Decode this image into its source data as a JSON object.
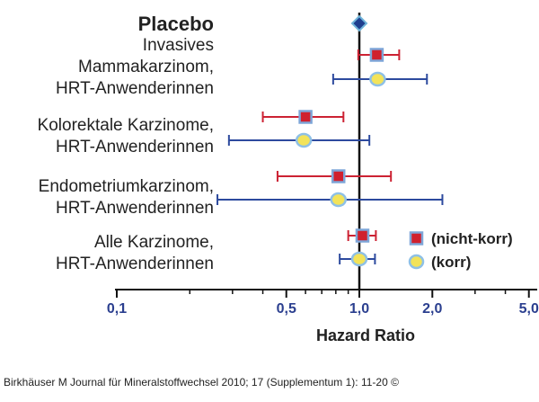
{
  "chart_data": {
    "type": "forest",
    "xlabel": "Hazard Ratio",
    "xscale": "log",
    "xlim": [
      0.1,
      5.0
    ],
    "reference_line": 1.0,
    "x_ticks": [
      {
        "value": 0.1,
        "label": "0,1"
      },
      {
        "value": 0.5,
        "label": "0,5"
      },
      {
        "value": 1.0,
        "label": "1,0"
      },
      {
        "value": 2.0,
        "label": "2,0"
      },
      {
        "value": 5.0,
        "label": "5,0"
      }
    ],
    "placebo": {
      "label": "Placebo",
      "value": 1.0
    },
    "groups": [
      {
        "label_lines": [
          "Invasives",
          "Mammakarzinom,",
          "HRT-Anwenderinnen"
        ],
        "nicht_korr": {
          "hr": 1.18,
          "lo": 0.99,
          "hi": 1.46
        },
        "korr": {
          "hr": 1.19,
          "lo": 0.78,
          "hi": 1.9
        }
      },
      {
        "label_lines": [
          "Kolorektale Karzinome,",
          "HRT-Anwenderinnen"
        ],
        "nicht_korr": {
          "hr": 0.6,
          "lo": 0.4,
          "hi": 0.86
        },
        "korr": {
          "hr": 0.59,
          "lo": 0.29,
          "hi": 1.1
        }
      },
      {
        "label_lines": [
          "Endometriumkarzinom,",
          "HRT-Anwenderinnen"
        ],
        "nicht_korr": {
          "hr": 0.82,
          "lo": 0.46,
          "hi": 1.35
        },
        "korr": {
          "hr": 0.82,
          "lo": 0.26,
          "hi": 2.2
        }
      },
      {
        "label_lines": [
          "Alle Karzinome,",
          "HRT-Anwenderinnen"
        ],
        "nicht_korr": {
          "hr": 1.03,
          "lo": 0.9,
          "hi": 1.17
        },
        "korr": {
          "hr": 1.0,
          "lo": 0.83,
          "hi": 1.16
        }
      }
    ],
    "legend": [
      {
        "key": "nicht_korr",
        "label": "(nicht-korr)",
        "marker": "square"
      },
      {
        "key": "korr",
        "label": "(korr)",
        "marker": "circle"
      }
    ],
    "colors": {
      "nicht_korr_fill": "#d0202e",
      "nicht_korr_border": "#7ea6d8",
      "nicht_korr_line": "#cc2233",
      "korr_fill": "#f2e35a",
      "korr_border": "#8ec0e6",
      "korr_line": "#2d4a9e",
      "placebo_fill": "#1f3f8f",
      "placebo_border": "#6fb4d9",
      "axis": "#111111",
      "tick_text": "#2b3f8f"
    }
  },
  "caption": "Birkhäuser M Journal für Mineralstoffwechsel 2010; 17 (Supplementum 1): 11-20 ©"
}
